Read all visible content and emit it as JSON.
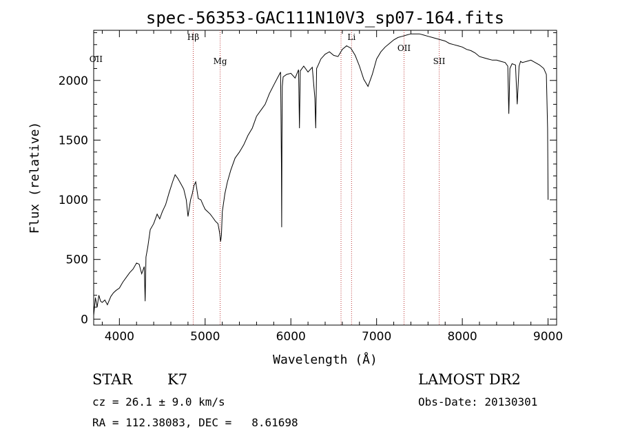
{
  "chart_data": {
    "type": "line",
    "title": "spec-56353-GAC111N10V3_sp07-164.fits",
    "xlabel": "Wavelength (Å)",
    "ylabel": "Flux (relative)",
    "xlim": [
      3700,
      9100
    ],
    "ylim": [
      -50,
      2420
    ],
    "xticks": [
      4000,
      5000,
      6000,
      7000,
      8000,
      9000
    ],
    "yticks": [
      0,
      500,
      1000,
      1500,
      2000
    ],
    "grid": false,
    "series": [
      {
        "x": [
          3700,
          3720,
          3740,
          3760,
          3780,
          3800,
          3830,
          3860,
          3900,
          3930,
          3960,
          4000,
          4040,
          4080,
          4120,
          4160,
          4200,
          4230,
          4260,
          4290,
          4300,
          4310,
          4330,
          4360,
          4400,
          4440,
          4470,
          4500,
          4540,
          4580,
          4620,
          4650,
          4680,
          4720,
          4750,
          4780,
          4800,
          4830,
          4850,
          4870,
          4890,
          4920,
          4950,
          4980,
          5000,
          5030,
          5060,
          5090,
          5120,
          5150,
          5170,
          5180,
          5190,
          5200,
          5230,
          5260,
          5300,
          5350,
          5400,
          5450,
          5500,
          5550,
          5600,
          5650,
          5700,
          5750,
          5800,
          5850,
          5880,
          5890,
          5893,
          5896,
          5900,
          5910,
          5950,
          6000,
          6050,
          6090,
          6100,
          6110,
          6150,
          6200,
          6250,
          6280,
          6290,
          6300,
          6320,
          6350,
          6400,
          6450,
          6500,
          6550,
          6600,
          6650,
          6700,
          6750,
          6800,
          6850,
          6900,
          6950,
          7000,
          7050,
          7100,
          7150,
          7200,
          7250,
          7300,
          7350,
          7400,
          7450,
          7500,
          7550,
          7600,
          7650,
          7700,
          7750,
          7800,
          7850,
          7900,
          7950,
          8000,
          8050,
          8100,
          8150,
          8200,
          8250,
          8300,
          8350,
          8400,
          8450,
          8500,
          8530,
          8542,
          8555,
          8580,
          8620,
          8640,
          8662,
          8680,
          8700,
          8750,
          8800,
          8850,
          8900,
          8950,
          8980,
          8995,
          9000
        ],
        "y": [
          30,
          180,
          100,
          200,
          150,
          140,
          160,
          120,
          190,
          220,
          240,
          260,
          310,
          350,
          390,
          420,
          470,
          460,
          380,
          440,
          150,
          520,
          600,
          750,
          800,
          880,
          840,
          900,
          960,
          1060,
          1150,
          1210,
          1180,
          1130,
          1090,
          1000,
          860,
          1000,
          1050,
          1120,
          1150,
          1010,
          1000,
          950,
          920,
          900,
          880,
          850,
          820,
          800,
          720,
          650,
          700,
          900,
          1050,
          1150,
          1250,
          1350,
          1400,
          1460,
          1540,
          1600,
          1700,
          1750,
          1800,
          1890,
          1960,
          2030,
          2070,
          1300,
          770,
          1500,
          1950,
          2030,
          2050,
          2060,
          2020,
          2090,
          1600,
          2080,
          2120,
          2070,
          2110,
          1850,
          1600,
          2100,
          2130,
          2180,
          2220,
          2240,
          2210,
          2200,
          2260,
          2290,
          2270,
          2210,
          2120,
          2010,
          1950,
          2050,
          2180,
          2240,
          2280,
          2310,
          2340,
          2360,
          2370,
          2380,
          2390,
          2390,
          2390,
          2380,
          2370,
          2360,
          2350,
          2340,
          2330,
          2310,
          2300,
          2290,
          2280,
          2260,
          2250,
          2230,
          2200,
          2190,
          2180,
          2170,
          2170,
          2160,
          2150,
          2120,
          1720,
          2100,
          2140,
          2130,
          1800,
          2120,
          2160,
          2150,
          2160,
          2170,
          2150,
          2130,
          2100,
          2050,
          1600,
          1000
        ]
      }
    ],
    "line_markers": [
      {
        "label": "OII",
        "x": 3727,
        "dotted": false
      },
      {
        "label": "Hβ",
        "x": 4861,
        "dotted": true
      },
      {
        "label": "Mg",
        "x": 5175,
        "dotted": true
      },
      {
        "label": "Li",
        "x": 6708,
        "dotted": true
      },
      {
        "label": "OII",
        "x": 7320,
        "dotted": true
      },
      {
        "label": "SII",
        "x": 7730,
        "dotted": true
      }
    ],
    "extra_markers": [
      {
        "x": 6585
      }
    ]
  },
  "info": {
    "object_type": "STAR",
    "subclass": "K7",
    "redshift": "cz = 26.1 ± 9.0 km/s",
    "coords": "RA = 112.38083, DEC =   8.61698",
    "survey": "LAMOST DR2",
    "obs_date": "Obs-Date: 20130301"
  }
}
